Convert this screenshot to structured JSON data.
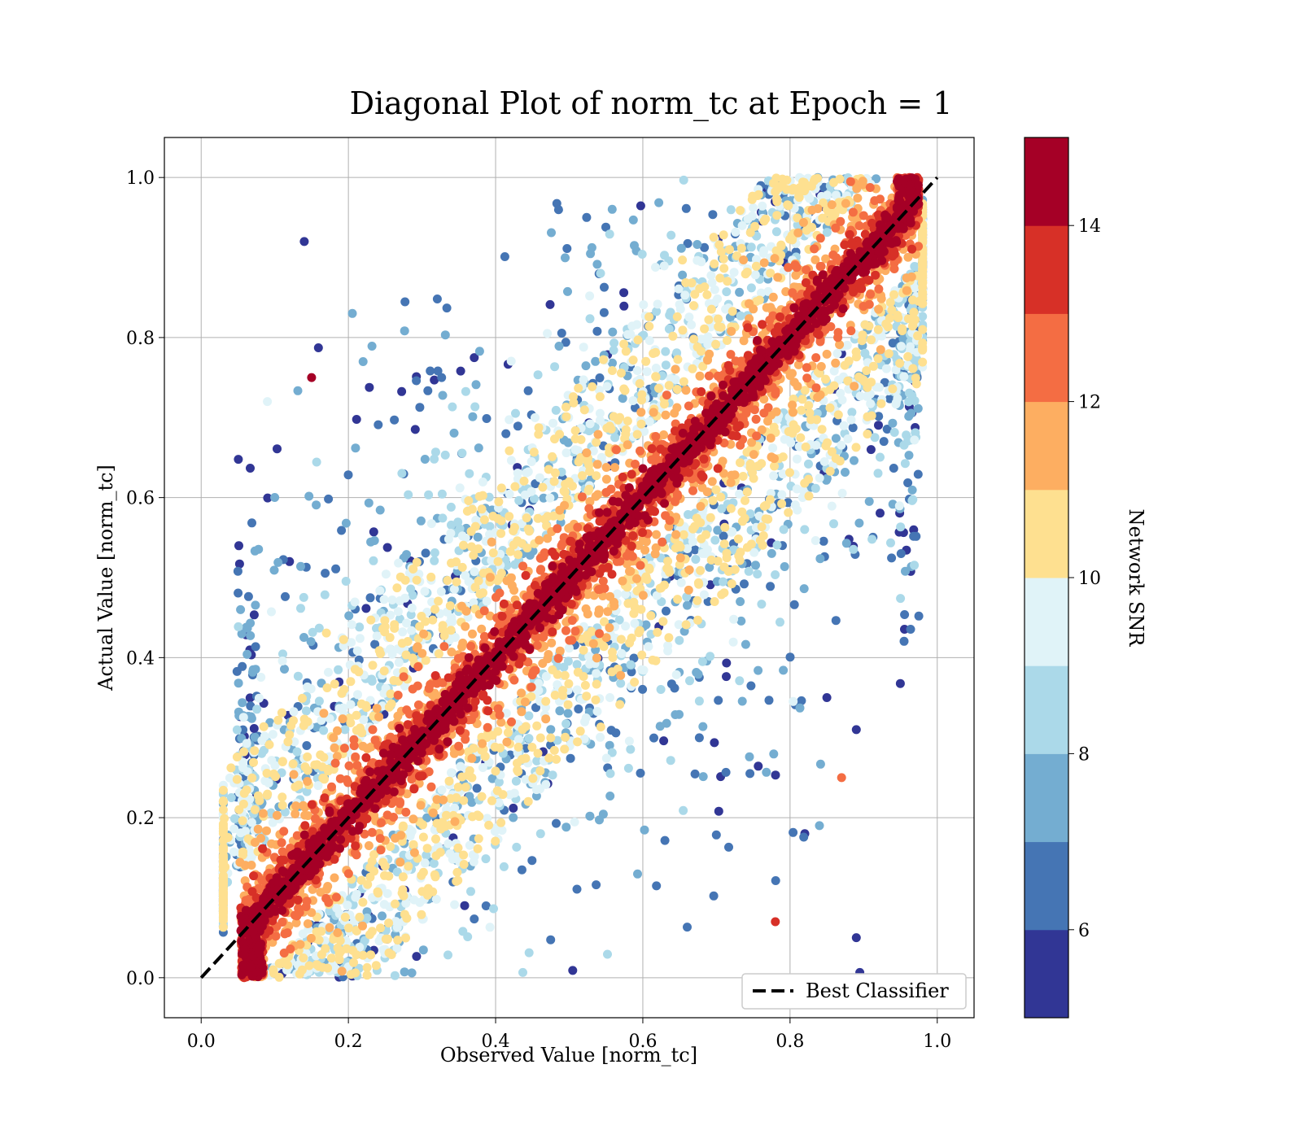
{
  "chart_data": {
    "type": "scatter",
    "title": "Diagonal Plot of norm_tc at Epoch = 1",
    "xlabel": "Observed Value [norm_tc]",
    "ylabel": "Actual Value [norm_tc]",
    "xlim": [
      -0.05,
      1.05
    ],
    "ylim": [
      -0.05,
      1.05
    ],
    "x_ticks": [
      "0.0",
      "0.2",
      "0.4",
      "0.6",
      "0.8",
      "1.0"
    ],
    "y_ticks": [
      "0.0",
      "0.2",
      "0.4",
      "0.6",
      "0.8",
      "1.0"
    ],
    "grid": true,
    "reference_line": {
      "label": "Best Classifier",
      "style": "dashed",
      "color": "#000000",
      "x": [
        0.0,
        1.0
      ],
      "y": [
        0.0,
        1.0
      ]
    },
    "legend_placement": "lower-right",
    "colorbar": {
      "label": "Network SNR",
      "range": [
        5,
        15
      ],
      "ticks": [
        "6",
        "8",
        "10",
        "12",
        "14"
      ],
      "colors": [
        "#313695",
        "#4575b4",
        "#74add1",
        "#abd9e9",
        "#e0f3f8",
        "#fee090",
        "#fdae61",
        "#f46d43",
        "#d73027",
        "#a50026"
      ]
    },
    "sample_points": [
      {
        "x": 0.09,
        "y": 0.72,
        "snr": 9
      },
      {
        "x": 0.14,
        "y": 0.92,
        "snr": 5
      },
      {
        "x": 0.12,
        "y": 0.52,
        "snr": 5
      },
      {
        "x": 0.15,
        "y": 0.75,
        "snr": 14
      },
      {
        "x": 0.91,
        "y": 0.66,
        "snr": 5
      },
      {
        "x": 0.87,
        "y": 0.25,
        "snr": 12
      },
      {
        "x": 0.89,
        "y": 0.05,
        "snr": 5
      },
      {
        "x": 0.84,
        "y": 0.19,
        "snr": 7
      },
      {
        "x": 0.82,
        "y": 0.18,
        "snr": 5
      },
      {
        "x": 0.78,
        "y": 0.07,
        "snr": 13
      },
      {
        "x": 0.85,
        "y": 0.35,
        "snr": 5
      },
      {
        "x": 0.89,
        "y": 0.31,
        "snr": 5
      }
    ]
  }
}
